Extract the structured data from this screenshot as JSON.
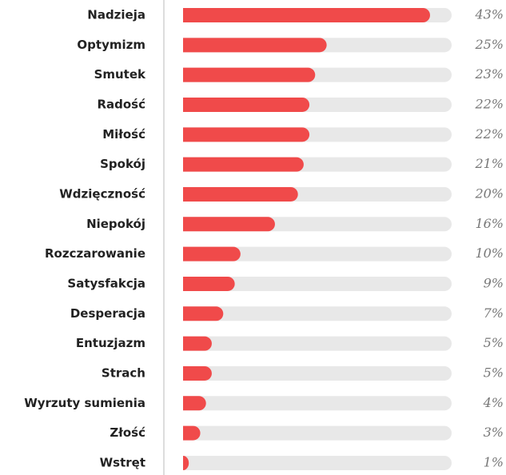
{
  "chart_data": {
    "type": "bar",
    "orientation": "horizontal",
    "color": "#f04a4a",
    "categories": [
      "Nadzieja",
      "Optymizm",
      "Smutek",
      "Radość",
      "Miłość",
      "Spokój",
      "Wdzięczność",
      "Niepokój",
      "Rozczarowanie",
      "Satysfakcja",
      "Desperacja",
      "Entuzjazm",
      "Strach",
      "Wyrzuty sumienia",
      "Złość",
      "Wstręt"
    ],
    "values": [
      43,
      25,
      23,
      22,
      22,
      21,
      20,
      16,
      10,
      9,
      7,
      5,
      5,
      4,
      3,
      1
    ],
    "value_labels": [
      "43%",
      "25%",
      "23%",
      "22%",
      "22%",
      "21%",
      "20%",
      "16%",
      "10%",
      "9%",
      "7%",
      "5%",
      "5%",
      "4%",
      "3%",
      "1%"
    ]
  }
}
